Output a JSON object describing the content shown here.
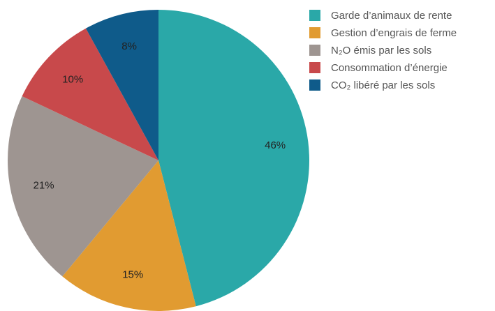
{
  "chart_data": {
    "type": "pie",
    "categories": [
      "Garde d’animaux de rente",
      "Gestion d’engrais de ferme",
      "N₂O émis par les sols",
      "Consommation d’énergie",
      "CO₂ libéré par les sols"
    ],
    "values": [
      46,
      15,
      21,
      10,
      8
    ],
    "value_labels": [
      "46%",
      "15%",
      "21%",
      "10%",
      "8%"
    ],
    "colors": [
      "#2aa8a8",
      "#e19b31",
      "#9e9591",
      "#c8494b",
      "#0f5b8a"
    ],
    "legend": "right"
  }
}
